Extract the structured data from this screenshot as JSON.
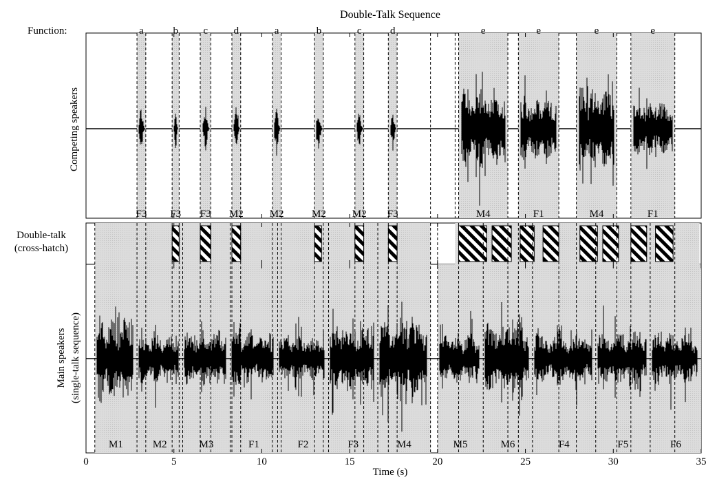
{
  "chart_data": {
    "type": "line",
    "title": "Double-Talk Sequence",
    "xlabel": "Time (s)",
    "xlim": [
      0,
      35
    ],
    "x_ticks": [
      "0",
      "5",
      "10",
      "15",
      "20",
      "25",
      "30",
      "35"
    ],
    "x_tick_values": [
      0,
      5,
      10,
      15,
      20,
      25,
      30,
      35
    ],
    "function_label": "Function:",
    "colors": {
      "segment_fill": "#dcdcdc",
      "waveform": "#000000",
      "hatch": "#000000"
    },
    "panels": {
      "competing": {
        "ylabel": "Competing speakers",
        "segments": [
          {
            "start": 2.9,
            "end": 3.4,
            "function": "a",
            "speaker": "F3",
            "amplitude": 0.45
          },
          {
            "start": 4.9,
            "end": 5.3,
            "function": "b",
            "speaker": "F3",
            "amplitude": 0.45
          },
          {
            "start": 6.5,
            "end": 7.1,
            "function": "c",
            "speaker": "F3",
            "amplitude": 0.45
          },
          {
            "start": 8.3,
            "end": 8.8,
            "function": "d",
            "speaker": "M2",
            "amplitude": 0.42
          },
          {
            "start": 10.6,
            "end": 11.1,
            "function": "a",
            "speaker": "M2",
            "amplitude": 0.42
          },
          {
            "start": 13.0,
            "end": 13.5,
            "function": "b",
            "speaker": "M2",
            "amplitude": 0.42
          },
          {
            "start": 15.3,
            "end": 15.8,
            "function": "c",
            "speaker": "M2",
            "amplitude": 0.42
          },
          {
            "start": 17.2,
            "end": 17.7,
            "function": "d",
            "speaker": "F3",
            "amplitude": 0.45
          },
          {
            "start": 21.2,
            "end": 24.0,
            "function": "e",
            "speaker": "M4",
            "amplitude": 0.9
          },
          {
            "start": 24.6,
            "end": 26.9,
            "function": "e",
            "speaker": "F1",
            "amplitude": 0.7
          },
          {
            "start": 27.9,
            "end": 30.2,
            "function": "e",
            "speaker": "M4",
            "amplitude": 0.95
          },
          {
            "start": 31.0,
            "end": 33.5,
            "function": "e",
            "speaker": "F1",
            "amplitude": 0.6
          }
        ]
      },
      "doubletalk": {
        "ylabel_line1": "Double-talk",
        "ylabel_line2": "(cross-hatch)",
        "gray_ranges": [
          [
            0.5,
            19.6
          ],
          [
            21.0,
            34.9
          ]
        ],
        "hatched_ranges": [
          [
            4.9,
            5.3
          ],
          [
            6.5,
            7.1
          ],
          [
            8.3,
            8.8
          ],
          [
            13.0,
            13.4
          ],
          [
            15.3,
            15.8
          ],
          [
            17.2,
            17.7
          ],
          [
            21.2,
            22.8
          ],
          [
            23.1,
            24.2
          ],
          [
            24.7,
            25.5
          ],
          [
            26.0,
            26.9
          ],
          [
            28.1,
            29.1
          ],
          [
            29.4,
            30.3
          ],
          [
            31.0,
            31.9
          ],
          [
            32.4,
            33.4
          ]
        ]
      },
      "main": {
        "ylabel_line1": "Main speakers",
        "ylabel_line2": "(single-talk sequence)",
        "segments": [
          {
            "start": 0.5,
            "end": 2.9,
            "speaker": "M1",
            "amplitude": 0.95
          },
          {
            "start": 2.9,
            "end": 5.5,
            "speaker": "M2",
            "amplitude": 0.55
          },
          {
            "start": 5.5,
            "end": 8.2,
            "speaker": "M3",
            "amplitude": 0.6
          },
          {
            "start": 8.2,
            "end": 10.9,
            "speaker": "F1",
            "amplitude": 0.6
          },
          {
            "start": 10.9,
            "end": 13.8,
            "speaker": "F2",
            "amplitude": 0.5
          },
          {
            "start": 13.8,
            "end": 16.6,
            "speaker": "F3",
            "amplitude": 0.65
          },
          {
            "start": 16.6,
            "end": 19.6,
            "speaker": "M4",
            "amplitude": 0.85
          },
          {
            "start": 20.0,
            "end": 22.6,
            "speaker": "M5",
            "amplitude": 0.55
          },
          {
            "start": 22.6,
            "end": 25.4,
            "speaker": "M6",
            "amplitude": 0.75
          },
          {
            "start": 25.4,
            "end": 29.0,
            "speaker": "F4",
            "amplitude": 0.55
          },
          {
            "start": 29.0,
            "end": 32.1,
            "speaker": "F5",
            "amplitude": 0.6
          },
          {
            "start": 32.1,
            "end": 35.0,
            "speaker": "F6",
            "amplitude": 0.55
          }
        ]
      }
    }
  }
}
